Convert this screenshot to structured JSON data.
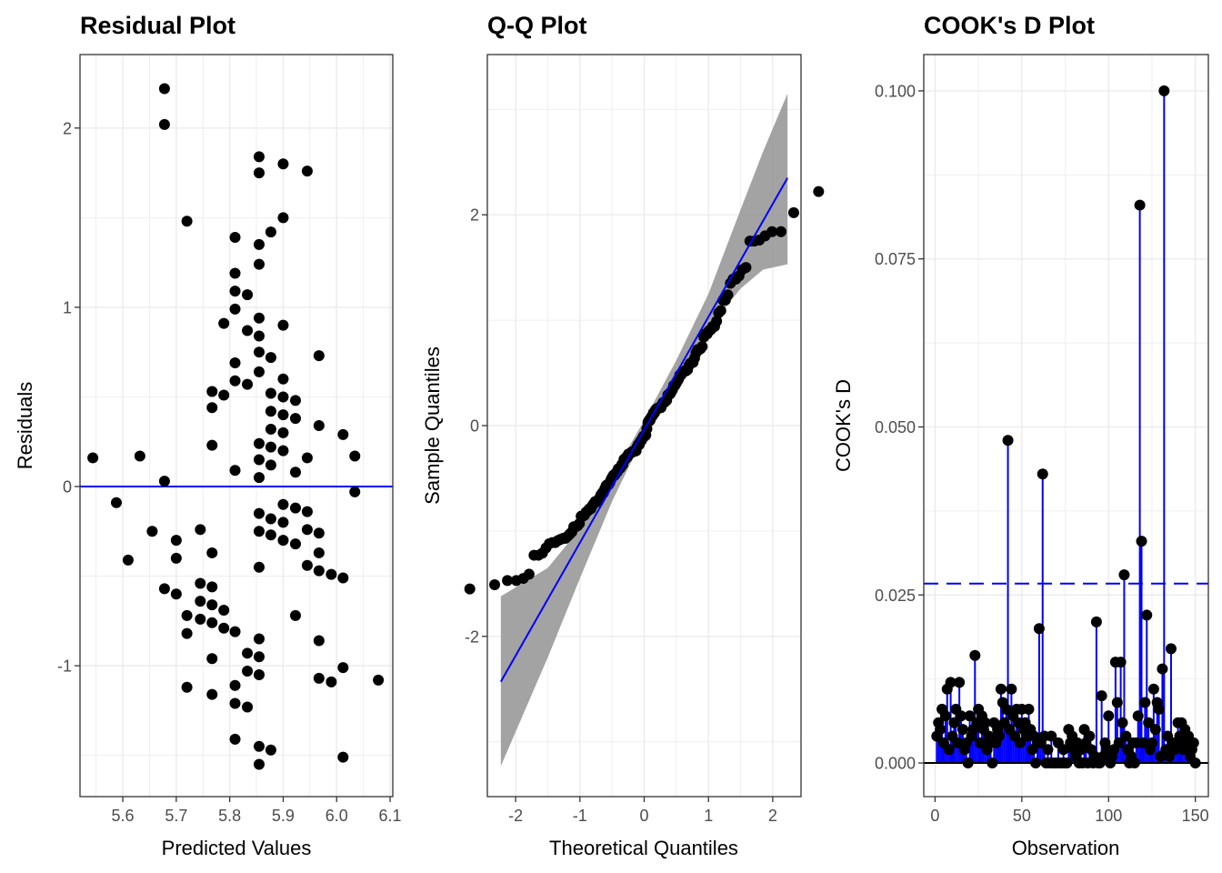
{
  "chart_data": [
    {
      "type": "scatter",
      "title": "Residual Plot",
      "xlabel": "Predicted Values",
      "ylabel": "Residuals",
      "xlim": [
        5.52,
        6.105
      ],
      "ylim": [
        -1.73,
        2.41
      ],
      "x_ticks": [
        5.6,
        5.7,
        5.8,
        5.9,
        6.0,
        6.1
      ],
      "x_tick_labels": [
        "5.6",
        "5.7",
        "5.8",
        "5.9",
        "6.0",
        "6.1"
      ],
      "y_ticks": [
        -1,
        0,
        1,
        2
      ],
      "y_tick_labels": [
        "-1",
        "0",
        "1",
        "2"
      ],
      "grid": true,
      "reference_line": {
        "y": 0,
        "color": "#0000ff"
      },
      "point_color": "#000000",
      "points": [
        [
          5.678,
          2.22
        ],
        [
          5.678,
          2.02
        ],
        [
          5.855,
          1.84
        ],
        [
          5.9,
          1.8
        ],
        [
          5.855,
          1.75
        ],
        [
          5.945,
          1.76
        ],
        [
          5.72,
          1.48
        ],
        [
          5.9,
          1.5
        ],
        [
          5.877,
          1.42
        ],
        [
          5.81,
          1.39
        ],
        [
          5.855,
          1.35
        ],
        [
          5.855,
          1.24
        ],
        [
          5.81,
          1.19
        ],
        [
          5.81,
          1.09
        ],
        [
          5.833,
          1.07
        ],
        [
          5.81,
          0.99
        ],
        [
          5.855,
          0.94
        ],
        [
          5.789,
          0.91
        ],
        [
          5.9,
          0.9
        ],
        [
          5.833,
          0.87
        ],
        [
          5.855,
          0.84
        ],
        [
          5.855,
          0.75
        ],
        [
          5.877,
          0.72
        ],
        [
          5.967,
          0.73
        ],
        [
          5.81,
          0.69
        ],
        [
          5.855,
          0.64
        ],
        [
          5.9,
          0.6
        ],
        [
          5.81,
          0.59
        ],
        [
          5.833,
          0.57
        ],
        [
          5.767,
          0.53
        ],
        [
          5.789,
          0.51
        ],
        [
          5.877,
          0.52
        ],
        [
          5.9,
          0.5
        ],
        [
          5.923,
          0.48
        ],
        [
          5.767,
          0.44
        ],
        [
          5.877,
          0.42
        ],
        [
          5.9,
          0.4
        ],
        [
          5.923,
          0.38
        ],
        [
          5.967,
          0.34
        ],
        [
          5.877,
          0.32
        ],
        [
          5.9,
          0.3
        ],
        [
          6.012,
          0.29
        ],
        [
          5.767,
          0.23
        ],
        [
          5.855,
          0.24
        ],
        [
          5.877,
          0.22
        ],
        [
          5.9,
          0.2
        ],
        [
          5.544,
          0.16
        ],
        [
          5.632,
          0.17
        ],
        [
          6.034,
          0.17
        ],
        [
          5.945,
          0.16
        ],
        [
          5.855,
          0.15
        ],
        [
          5.877,
          0.12
        ],
        [
          5.81,
          0.09
        ],
        [
          5.923,
          0.08
        ],
        [
          5.855,
          0.05
        ],
        [
          5.678,
          0.03
        ],
        [
          6.034,
          -0.03
        ],
        [
          5.588,
          -0.09
        ],
        [
          5.9,
          -0.1
        ],
        [
          5.923,
          -0.12
        ],
        [
          5.945,
          -0.14
        ],
        [
          5.855,
          -0.15
        ],
        [
          5.877,
          -0.18
        ],
        [
          5.9,
          -0.2
        ],
        [
          5.655,
          -0.25
        ],
        [
          5.745,
          -0.24
        ],
        [
          5.855,
          -0.25
        ],
        [
          5.945,
          -0.24
        ],
        [
          5.877,
          -0.27
        ],
        [
          5.967,
          -0.26
        ],
        [
          5.7,
          -0.3
        ],
        [
          5.9,
          -0.3
        ],
        [
          5.923,
          -0.32
        ],
        [
          5.767,
          -0.37
        ],
        [
          5.967,
          -0.37
        ],
        [
          5.61,
          -0.41
        ],
        [
          5.7,
          -0.4
        ],
        [
          5.855,
          -0.45
        ],
        [
          5.945,
          -0.44
        ],
        [
          5.967,
          -0.47
        ],
        [
          5.99,
          -0.49
        ],
        [
          6.012,
          -0.51
        ],
        [
          5.745,
          -0.54
        ],
        [
          5.767,
          -0.56
        ],
        [
          5.678,
          -0.57
        ],
        [
          5.7,
          -0.6
        ],
        [
          5.745,
          -0.64
        ],
        [
          5.767,
          -0.66
        ],
        [
          5.789,
          -0.69
        ],
        [
          5.72,
          -0.72
        ],
        [
          5.923,
          -0.72
        ],
        [
          5.745,
          -0.74
        ],
        [
          5.767,
          -0.76
        ],
        [
          5.789,
          -0.79
        ],
        [
          5.81,
          -0.81
        ],
        [
          5.72,
          -0.82
        ],
        [
          5.855,
          -0.85
        ],
        [
          5.967,
          -0.86
        ],
        [
          5.833,
          -0.93
        ],
        [
          5.855,
          -0.95
        ],
        [
          5.767,
          -0.96
        ],
        [
          6.012,
          -1.01
        ],
        [
          5.833,
          -1.03
        ],
        [
          5.855,
          -1.05
        ],
        [
          5.967,
          -1.07
        ],
        [
          5.99,
          -1.09
        ],
        [
          6.078,
          -1.08
        ],
        [
          5.81,
          -1.11
        ],
        [
          5.72,
          -1.12
        ],
        [
          5.767,
          -1.16
        ],
        [
          5.81,
          -1.21
        ],
        [
          5.833,
          -1.23
        ],
        [
          5.81,
          -1.41
        ],
        [
          5.855,
          -1.45
        ],
        [
          5.877,
          -1.47
        ],
        [
          6.012,
          -1.51
        ],
        [
          5.855,
          -1.55
        ]
      ]
    },
    {
      "type": "scatter",
      "title": "Q-Q Plot",
      "xlabel": "Theoretical Quantiles",
      "ylabel": "Sample Quantiles",
      "xlim": [
        -2.44,
        2.44
      ],
      "ylim": [
        -3.52,
        3.52
      ],
      "x_ticks": [
        -2,
        -1,
        0,
        1,
        2
      ],
      "x_tick_labels": [
        "-2",
        "-1",
        "0",
        "1",
        "2"
      ],
      "y_ticks": [
        -2,
        0,
        2
      ],
      "y_tick_labels": [
        "-2",
        "0",
        "2"
      ],
      "grid": true,
      "n_points": 150,
      "reference_line": {
        "x": [
          -2.23,
          2.23
        ],
        "y": [
          -2.43,
          2.35
        ],
        "color": "#0000ff"
      },
      "confidence_band": {
        "color": "#999999",
        "x": [
          -2.23,
          -1.5,
          -1.0,
          -0.5,
          0.0,
          0.5,
          1.0,
          1.5,
          1.85,
          2.23
        ],
        "upper": [
          -1.62,
          -1.35,
          -0.98,
          -0.48,
          0.05,
          0.62,
          1.25,
          2.05,
          2.6,
          3.15
        ],
        "lower": [
          -3.23,
          -2.2,
          -1.45,
          -0.72,
          -0.09,
          0.43,
          0.92,
          1.3,
          1.48,
          1.53
        ]
      },
      "point_color": "#000000",
      "sample_quantile_outliers": {
        "min": -1.55,
        "max": 2.22
      }
    },
    {
      "type": "bar",
      "subtype": "lollipop",
      "title": "COOK's D Plot",
      "xlabel": "Observation",
      "ylabel": "COOK's D",
      "xlim": [
        -6.5,
        157.5
      ],
      "ylim": [
        -0.005,
        0.1054
      ],
      "x_ticks": [
        0,
        50,
        100,
        150
      ],
      "x_tick_labels": [
        "0",
        "50",
        "100",
        "150"
      ],
      "y_ticks": [
        0.0,
        0.025,
        0.05,
        0.075,
        0.1
      ],
      "y_tick_labels": [
        "0.000",
        "0.025",
        "0.050",
        "0.075",
        "0.100"
      ],
      "grid": true,
      "threshold": {
        "value": 0.0267,
        "style": "dashed",
        "color": "#0000ff"
      },
      "stem_color": "#0000ff",
      "point_color": "#000000",
      "values": [
        0.004,
        0.006,
        0.005,
        0.008,
        0.003,
        0.007,
        0.011,
        0.002,
        0.012,
        0.004,
        0.006,
        0.008,
        0.003,
        0.012,
        0.007,
        0.005,
        0.002,
        0.003,
        0.0,
        0.007,
        0.004,
        0.005,
        0.016,
        0.006,
        0.008,
        0.003,
        0.007,
        0.005,
        0.006,
        0.002,
        0.004,
        0.003,
        0.0,
        0.006,
        0.003,
        0.005,
        0.004,
        0.011,
        0.009,
        0.006,
        0.008,
        0.048,
        0.005,
        0.011,
        0.007,
        0.004,
        0.008,
        0.006,
        0.003,
        0.008,
        0.005,
        0.006,
        0.004,
        0.008,
        0.005,
        0.002,
        0.004,
        0.0,
        0.003,
        0.02,
        0.003,
        0.043,
        0.004,
        0.0,
        0.002,
        0.0,
        0.004,
        0.0,
        0.0,
        0.0,
        0.003,
        0.0,
        0.0,
        0.002,
        0.0,
        0.0,
        0.005,
        0.003,
        0.004,
        0.002,
        0.001,
        0.003,
        0.0,
        0.002,
        0.0,
        0.005,
        0.003,
        0.0,
        0.004,
        0.002,
        0.0,
        0.001,
        0.021,
        0.0,
        0.0,
        0.01,
        0.001,
        0.003,
        0.002,
        0.007,
        0.0,
        0.001,
        0.002,
        0.015,
        0.009,
        0.003,
        0.015,
        0.006,
        0.028,
        0.004,
        0.002,
        0.0,
        0.001,
        0.003,
        0.0,
        0.003,
        0.007,
        0.083,
        0.033,
        0.003,
        0.009,
        0.022,
        0.006,
        0.002,
        0.003,
        0.011,
        0.005,
        0.009,
        0.008,
        0.001,
        0.014,
        0.1,
        0.002,
        0.004,
        0.001,
        0.017,
        0.003,
        0.002,
        0.003,
        0.006,
        0.004,
        0.006,
        0.002,
        0.005,
        0.003,
        0.004,
        0.001,
        0.002,
        0.003,
        0.0
      ]
    }
  ]
}
